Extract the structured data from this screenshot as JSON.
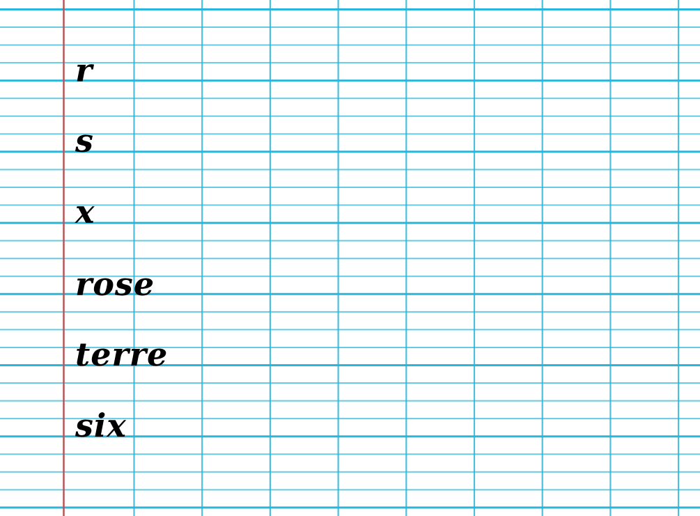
{
  "page": {
    "paper_color": "#ffffff",
    "ruling_color": "#2bb5d8",
    "margin_line_color": "#b5565a",
    "text_color": "#000000"
  },
  "words": [
    "r",
    "s",
    "x",
    "rose",
    "terre",
    "six"
  ]
}
